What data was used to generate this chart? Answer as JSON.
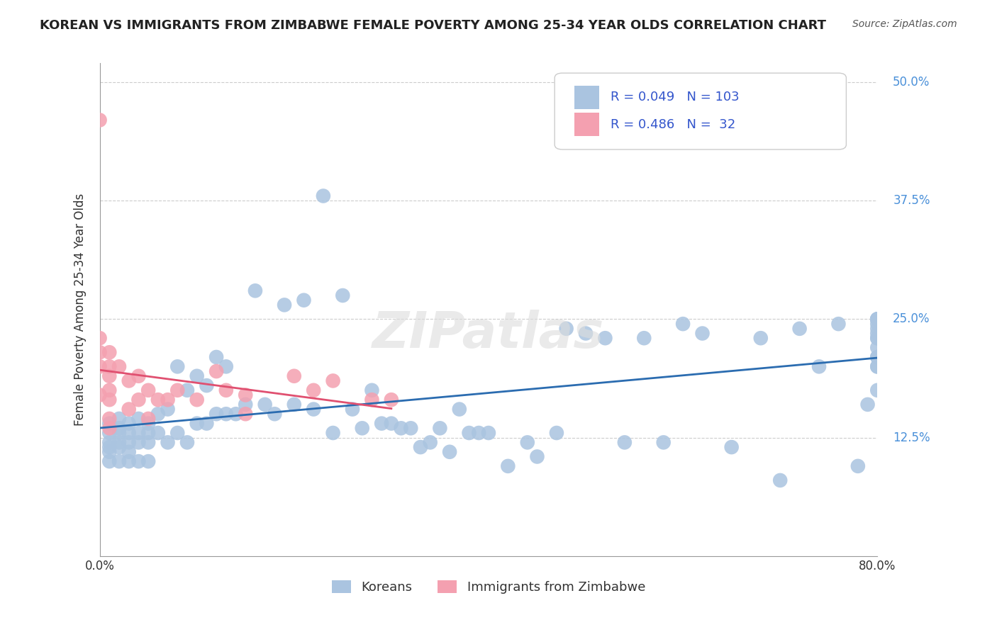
{
  "title": "KOREAN VS IMMIGRANTS FROM ZIMBABWE FEMALE POVERTY AMONG 25-34 YEAR OLDS CORRELATION CHART",
  "source_text": "Source: ZipAtlas.com",
  "ylabel": "Female Poverty Among 25-34 Year Olds",
  "xlim": [
    0.0,
    0.8
  ],
  "ylim": [
    0.0,
    0.52
  ],
  "xticks": [
    0.0,
    0.1,
    0.2,
    0.3,
    0.4,
    0.5,
    0.6,
    0.7,
    0.8
  ],
  "xticklabels": [
    "0.0%",
    "",
    "",
    "",
    "",
    "",
    "",
    "",
    "80.0%"
  ],
  "ytick_positions": [
    0.125,
    0.25,
    0.375,
    0.5
  ],
  "ytick_labels": [
    "12.5%",
    "25.0%",
    "37.5%",
    "50.0%"
  ],
  "grid_color": "#cccccc",
  "background_color": "#ffffff",
  "watermark_text": "ZIPatlas",
  "blue_color": "#aac4e0",
  "blue_line_color": "#2b6cb0",
  "pink_color": "#f4a0b0",
  "pink_line_color": "#e05070",
  "blue_R": 0.049,
  "blue_N": 103,
  "pink_R": 0.486,
  "pink_N": 32,
  "korean_x": [
    0.01,
    0.01,
    0.01,
    0.01,
    0.01,
    0.01,
    0.02,
    0.02,
    0.02,
    0.02,
    0.02,
    0.02,
    0.03,
    0.03,
    0.03,
    0.03,
    0.03,
    0.04,
    0.04,
    0.04,
    0.04,
    0.05,
    0.05,
    0.05,
    0.05,
    0.06,
    0.06,
    0.07,
    0.07,
    0.08,
    0.08,
    0.09,
    0.09,
    0.1,
    0.1,
    0.11,
    0.11,
    0.12,
    0.12,
    0.13,
    0.13,
    0.14,
    0.15,
    0.16,
    0.17,
    0.18,
    0.19,
    0.2,
    0.21,
    0.22,
    0.23,
    0.24,
    0.25,
    0.26,
    0.27,
    0.28,
    0.29,
    0.3,
    0.31,
    0.32,
    0.33,
    0.34,
    0.35,
    0.36,
    0.37,
    0.38,
    0.39,
    0.4,
    0.42,
    0.44,
    0.45,
    0.47,
    0.48,
    0.5,
    0.52,
    0.54,
    0.56,
    0.58,
    0.6,
    0.62,
    0.65,
    0.68,
    0.7,
    0.72,
    0.74,
    0.76,
    0.78,
    0.79,
    0.8,
    0.8,
    0.8,
    0.8,
    0.8,
    0.8,
    0.8,
    0.8,
    0.8,
    0.8,
    0.8,
    0.8,
    0.8,
    0.8,
    0.8
  ],
  "korean_y": [
    0.14,
    0.13,
    0.12,
    0.115,
    0.11,
    0.1,
    0.145,
    0.135,
    0.13,
    0.12,
    0.115,
    0.1,
    0.14,
    0.13,
    0.12,
    0.11,
    0.1,
    0.145,
    0.13,
    0.12,
    0.1,
    0.14,
    0.13,
    0.12,
    0.1,
    0.15,
    0.13,
    0.155,
    0.12,
    0.2,
    0.13,
    0.175,
    0.12,
    0.19,
    0.14,
    0.18,
    0.14,
    0.21,
    0.15,
    0.2,
    0.15,
    0.15,
    0.16,
    0.28,
    0.16,
    0.15,
    0.265,
    0.16,
    0.27,
    0.155,
    0.38,
    0.13,
    0.275,
    0.155,
    0.135,
    0.175,
    0.14,
    0.14,
    0.135,
    0.135,
    0.115,
    0.12,
    0.135,
    0.11,
    0.155,
    0.13,
    0.13,
    0.13,
    0.095,
    0.12,
    0.105,
    0.13,
    0.24,
    0.235,
    0.23,
    0.12,
    0.23,
    0.12,
    0.245,
    0.235,
    0.115,
    0.23,
    0.08,
    0.24,
    0.2,
    0.245,
    0.095,
    0.16,
    0.2,
    0.23,
    0.25,
    0.25,
    0.175,
    0.21,
    0.25,
    0.25,
    0.22,
    0.245,
    0.23,
    0.24,
    0.21,
    0.235,
    0.2
  ],
  "zimb_x": [
    0.0,
    0.0,
    0.0,
    0.0,
    0.0,
    0.01,
    0.01,
    0.01,
    0.01,
    0.01,
    0.01,
    0.01,
    0.02,
    0.03,
    0.03,
    0.04,
    0.04,
    0.05,
    0.05,
    0.06,
    0.07,
    0.08,
    0.1,
    0.12,
    0.13,
    0.15,
    0.15,
    0.2,
    0.22,
    0.24,
    0.28,
    0.3
  ],
  "zimb_y": [
    0.46,
    0.23,
    0.215,
    0.2,
    0.17,
    0.215,
    0.2,
    0.19,
    0.175,
    0.165,
    0.145,
    0.135,
    0.2,
    0.185,
    0.155,
    0.19,
    0.165,
    0.175,
    0.145,
    0.165,
    0.165,
    0.175,
    0.165,
    0.195,
    0.175,
    0.17,
    0.15,
    0.19,
    0.175,
    0.185,
    0.165,
    0.165
  ]
}
